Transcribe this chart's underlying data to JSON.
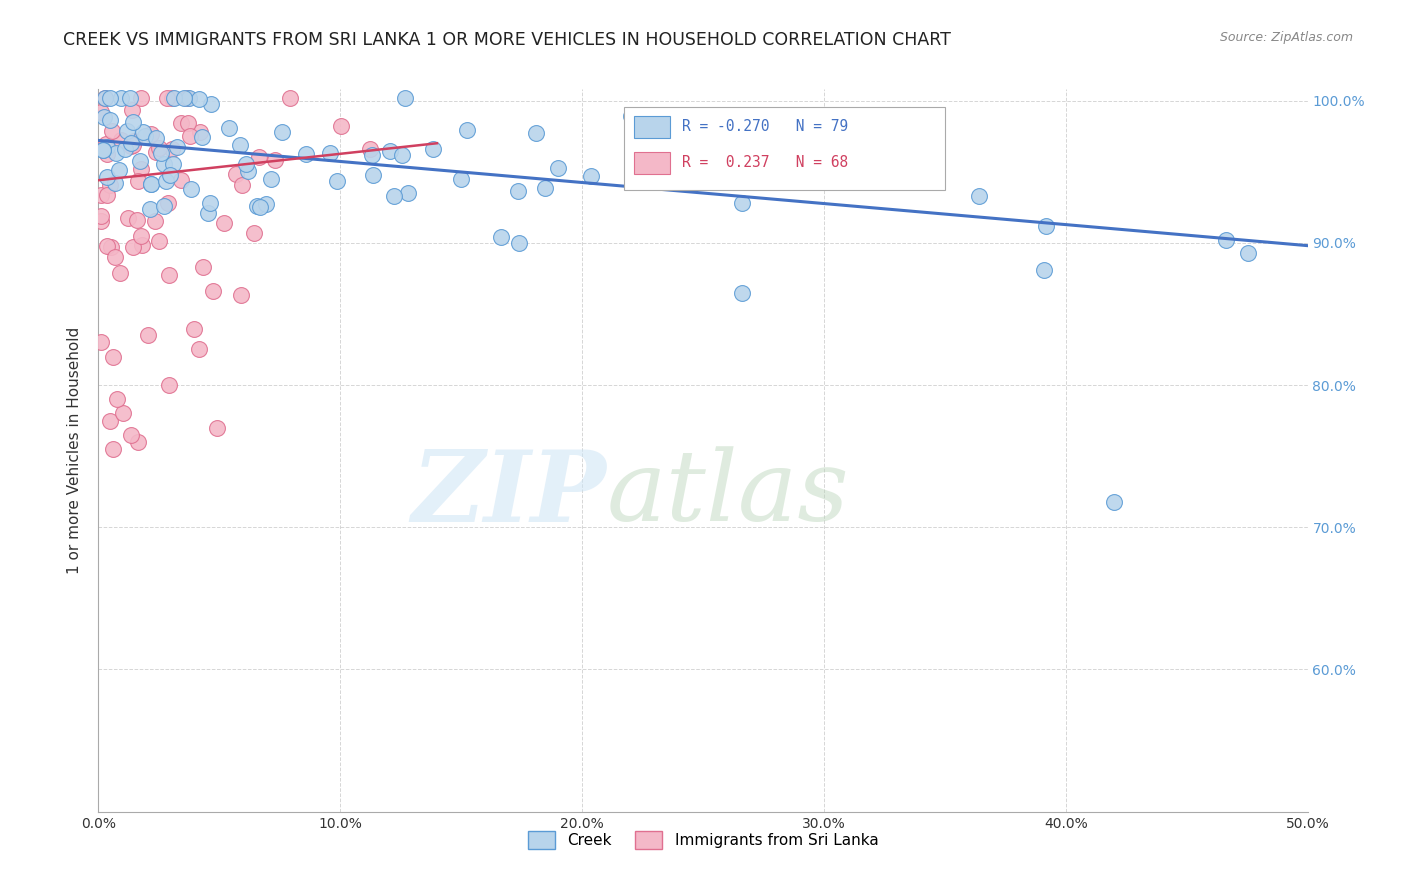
{
  "title": "CREEK VS IMMIGRANTS FROM SRI LANKA 1 OR MORE VEHICLES IN HOUSEHOLD CORRELATION CHART",
  "source": "Source: ZipAtlas.com",
  "ylabel": "1 or more Vehicles in Household",
  "xmin": 0.0,
  "xmax": 0.5,
  "ymin": 0.5,
  "ymax": 1.008,
  "creek_color": "#b8d4eb",
  "creek_edge_color": "#5b9bd5",
  "sri_lanka_color": "#f4b8c8",
  "sri_lanka_edge_color": "#e07090",
  "creek_R": -0.27,
  "creek_N": 79,
  "sri_lanka_R": 0.237,
  "sri_lanka_N": 68,
  "creek_line_color": "#4472c4",
  "sri_lanka_line_color": "#d04060",
  "creek_line_x0": 0.0,
  "creek_line_y0": 0.972,
  "creek_line_x1": 0.5,
  "creek_line_y1": 0.898,
  "srilanka_line_x0": 0.0,
  "srilanka_line_y0": 0.944,
  "srilanka_line_x1": 0.14,
  "srilanka_line_y1": 0.97
}
